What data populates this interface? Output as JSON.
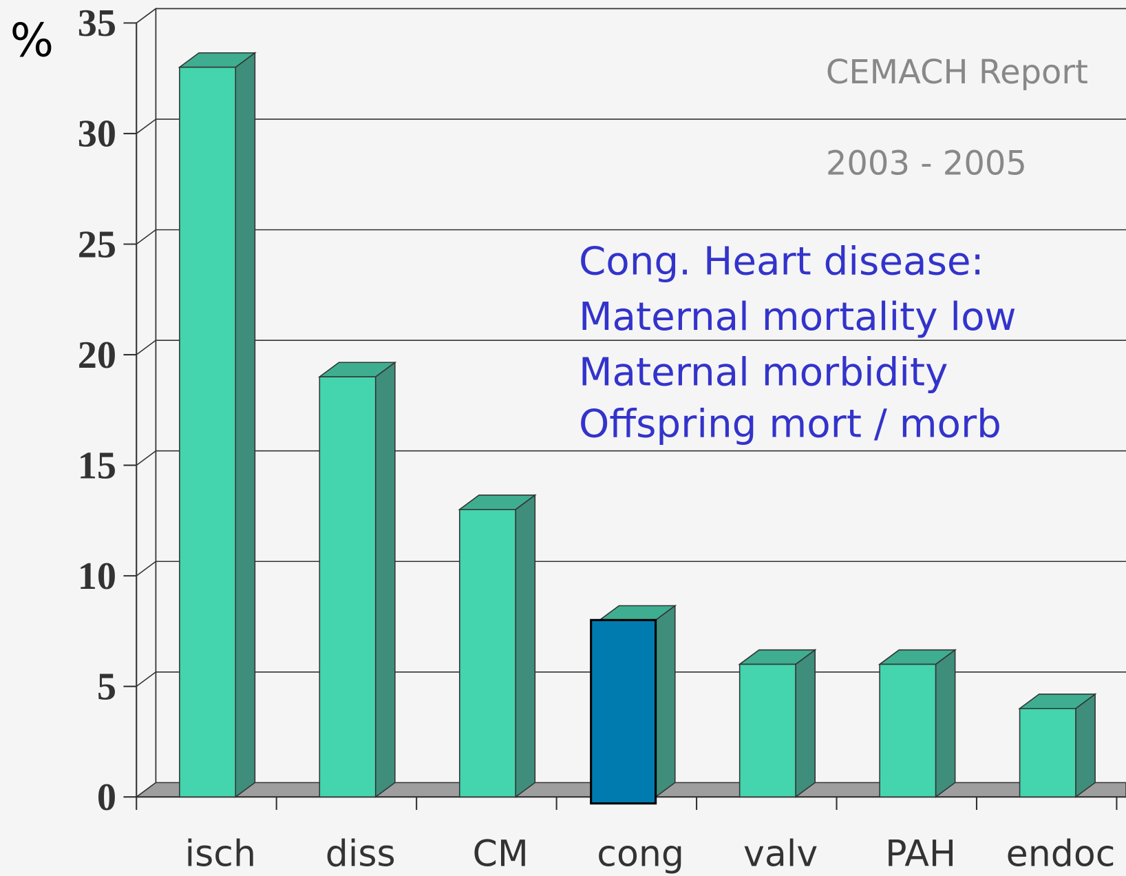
{
  "chart_data": {
    "type": "bar3d",
    "y_label": "%",
    "annotations": [
      "CEMACH Report",
      "2003 - 2005"
    ],
    "notes": [
      "Cong. Heart disease:",
      "Maternal mortality low",
      "Maternal morbidity",
      "Offspring mort / morb"
    ],
    "categories": [
      "isch",
      "diss",
      "CM",
      "cong",
      "valv",
      "PAH",
      "endoc"
    ],
    "values": [
      33,
      19,
      13,
      8,
      6,
      6,
      4
    ],
    "colors": [
      "#44d4ae",
      "#44d4ae",
      "#44d4ae",
      "#007bb0",
      "#44d4ae",
      "#44d4ae",
      "#44d4ae"
    ],
    "ylim": [
      0,
      35
    ],
    "yticks": [
      0,
      5,
      10,
      15,
      20,
      25,
      30,
      35
    ],
    "grid": true
  }
}
